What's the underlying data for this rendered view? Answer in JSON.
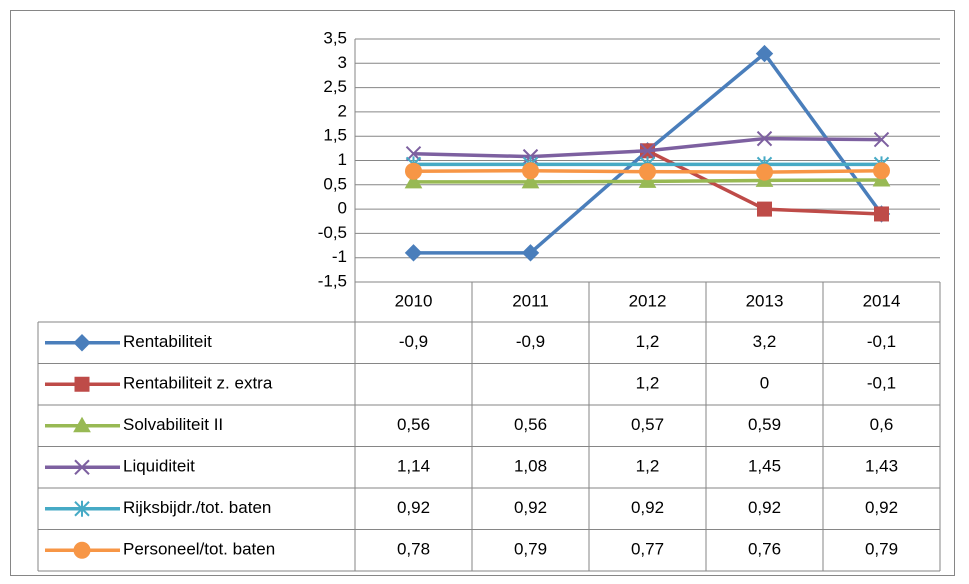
{
  "chart_data": {
    "type": "line",
    "categories": [
      "2010",
      "2011",
      "2012",
      "2013",
      "2014"
    ],
    "ylim": [
      -1.5,
      3.5
    ],
    "yticks": [
      {
        "value": -1.5,
        "label": "-1,5"
      },
      -1,
      {
        "value": -0.5,
        "label": "-0,5"
      },
      0,
      {
        "value": 0.5,
        "label": "0,5"
      },
      1,
      {
        "value": 1.5,
        "label": "1,5"
      },
      2,
      {
        "value": 2.5,
        "label": "2,5"
      },
      3,
      {
        "value": 3.5,
        "label": "3,5"
      }
    ],
    "grid": true,
    "data_table": true,
    "series": [
      {
        "name": "Rentabiliteit",
        "color": "#4a7ebb",
        "marker": "diamond",
        "values": [
          -0.9,
          -0.9,
          1.2,
          3.2,
          -0.1
        ],
        "value_labels": [
          "-0,9",
          "-0,9",
          "1,2",
          "3,2",
          "-0,1"
        ]
      },
      {
        "name": "Rentabiliteit z. extra",
        "color": "#be4b48",
        "marker": "square",
        "values": [
          null,
          null,
          1.2,
          0,
          -0.1
        ],
        "value_labels": [
          null,
          null,
          "1,2",
          "0",
          "-0,1"
        ]
      },
      {
        "name": "Solvabiliteit II",
        "color": "#98b954",
        "marker": "triangle",
        "values": [
          0.56,
          0.56,
          0.57,
          0.59,
          0.6
        ],
        "value_labels": [
          "0,56",
          "0,56",
          "0,57",
          "0,59",
          "0,6"
        ]
      },
      {
        "name": "Liquiditeit",
        "color": "#7d60a0",
        "marker": "x",
        "values": [
          1.14,
          1.08,
          1.2,
          1.45,
          1.43
        ],
        "value_labels": [
          "1,14",
          "1,08",
          "1,2",
          "1,45",
          "1,43"
        ]
      },
      {
        "name": "Rijksbijdr./tot. baten",
        "color": "#46aac5",
        "marker": "star",
        "values": [
          0.92,
          0.92,
          0.92,
          0.92,
          0.92
        ],
        "value_labels": [
          "0,92",
          "0,92",
          "0,92",
          "0,92",
          "0,92"
        ]
      },
      {
        "name": "Personeel/tot. baten",
        "color": "#f79646",
        "marker": "circle",
        "values": [
          0.78,
          0.79,
          0.77,
          0.76,
          0.79
        ],
        "value_labels": [
          "0,78",
          "0,79",
          "0,77",
          "0,76",
          "0,79"
        ]
      }
    ]
  }
}
